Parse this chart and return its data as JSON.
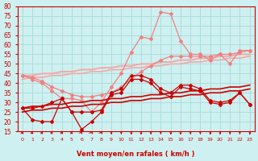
{
  "xlabel": "Vent moyen/en rafales ( km/h )",
  "x": [
    0,
    1,
    2,
    3,
    4,
    5,
    6,
    7,
    8,
    9,
    10,
    11,
    12,
    13,
    14,
    15,
    16,
    17,
    18,
    19,
    20,
    21,
    22,
    23
  ],
  "ylim": [
    15,
    80
  ],
  "yticks": [
    15,
    20,
    25,
    30,
    35,
    40,
    45,
    50,
    55,
    60,
    65,
    70,
    75,
    80
  ],
  "bg_color": "#cff0f0",
  "grid_color": "#aadddd",
  "line_dark1": [
    27,
    21,
    20,
    20,
    32,
    25,
    16,
    20,
    25,
    34,
    35,
    42,
    42,
    40,
    35,
    33,
    38,
    37,
    36,
    30,
    29,
    30,
    35,
    29
  ],
  "line_dark2": [
    27,
    27,
    28,
    30,
    32,
    25,
    25,
    25,
    26,
    35,
    37,
    44,
    44,
    42,
    37,
    35,
    39,
    39,
    37,
    31,
    30,
    31,
    35,
    29
  ],
  "line_dark_trend1": [
    27,
    28,
    28,
    29,
    29,
    30,
    30,
    31,
    31,
    32,
    32,
    33,
    33,
    34,
    34,
    35,
    35,
    36,
    36,
    37,
    37,
    38,
    38,
    39
  ],
  "line_dark_trend2": [
    25,
    26,
    26,
    27,
    27,
    28,
    28,
    29,
    29,
    30,
    30,
    31,
    31,
    32,
    32,
    33,
    33,
    34,
    34,
    35,
    35,
    36,
    36,
    37
  ],
  "line_light1": [
    44,
    42,
    40,
    36,
    32,
    32,
    31,
    25,
    30,
    38,
    45,
    56,
    64,
    63,
    77,
    76,
    62,
    55,
    55,
    52,
    55,
    50,
    57,
    57
  ],
  "line_light2": [
    44,
    43,
    41,
    38,
    36,
    34,
    33,
    33,
    34,
    35,
    38,
    42,
    46,
    49,
    52,
    54,
    54,
    54,
    54,
    54,
    55,
    55,
    56,
    57
  ],
  "line_light_trend1": [
    44,
    44,
    45,
    45,
    46,
    46,
    47,
    47,
    48,
    48,
    49,
    49,
    50,
    50,
    51,
    51,
    52,
    52,
    53,
    53,
    54,
    54,
    55,
    55
  ],
  "line_light_trend2": [
    42,
    43,
    43,
    44,
    44,
    45,
    45,
    46,
    46,
    47,
    47,
    48,
    48,
    49,
    49,
    50,
    50,
    51,
    51,
    52,
    52,
    53,
    53,
    54
  ],
  "wind_dirs": [
    0,
    0,
    0,
    0,
    0,
    0,
    1,
    1,
    1,
    2,
    2,
    2,
    2,
    2,
    2,
    2,
    2,
    2,
    2,
    2,
    2,
    2,
    2,
    2
  ]
}
